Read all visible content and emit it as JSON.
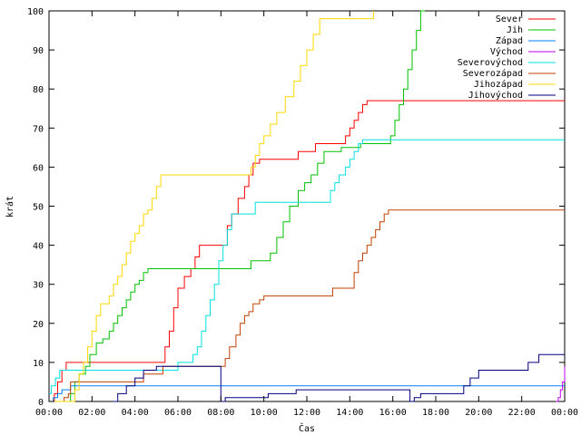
{
  "chart_data": {
    "type": "line",
    "step": true,
    "title": "",
    "xlabel": "Čas",
    "ylabel": "krát",
    "xlim": [
      0,
      24
    ],
    "ylim": [
      0,
      100
    ],
    "x_ticks": [
      0,
      2,
      4,
      6,
      8,
      10,
      12,
      14,
      16,
      18,
      20,
      22,
      24
    ],
    "x_tick_labels": [
      "00:00",
      "02:00",
      "04:00",
      "06:00",
      "08:00",
      "10:00",
      "12:00",
      "14:00",
      "16:00",
      "18:00",
      "20:00",
      "22:00",
      "00:00"
    ],
    "y_ticks": [
      0,
      10,
      20,
      30,
      40,
      50,
      60,
      70,
      80,
      90,
      100
    ],
    "y_tick_labels": [
      "0",
      "10",
      "20",
      "30",
      "40",
      "50",
      "60",
      "70",
      "80",
      "90",
      "100"
    ],
    "grid": false,
    "legend_position": "top-right",
    "series": [
      {
        "name": "Sever",
        "color": "#ff0000",
        "points": [
          [
            0,
            0
          ],
          [
            0.25,
            2
          ],
          [
            0.4,
            5
          ],
          [
            0.6,
            8
          ],
          [
            0.8,
            10
          ],
          [
            5.2,
            10
          ],
          [
            5.4,
            14
          ],
          [
            5.6,
            18
          ],
          [
            5.8,
            24
          ],
          [
            6.0,
            29
          ],
          [
            6.3,
            32
          ],
          [
            6.6,
            34
          ],
          [
            6.8,
            37
          ],
          [
            7.0,
            40
          ],
          [
            7.9,
            40
          ],
          [
            8.3,
            45
          ],
          [
            8.5,
            48
          ],
          [
            8.8,
            52
          ],
          [
            9.1,
            55
          ],
          [
            9.3,
            58
          ],
          [
            9.5,
            61
          ],
          [
            9.8,
            62
          ],
          [
            11.2,
            62
          ],
          [
            11.6,
            64
          ],
          [
            12.0,
            64
          ],
          [
            12.4,
            66
          ],
          [
            13.6,
            66
          ],
          [
            13.8,
            68
          ],
          [
            14.0,
            70
          ],
          [
            14.2,
            72
          ],
          [
            14.4,
            74
          ],
          [
            14.6,
            76
          ],
          [
            14.8,
            77
          ],
          [
            24,
            77
          ]
        ]
      },
      {
        "name": "Jih",
        "color": "#00c000",
        "points": [
          [
            0,
            0
          ],
          [
            1.0,
            2
          ],
          [
            1.2,
            5
          ],
          [
            1.4,
            7
          ],
          [
            1.7,
            9
          ],
          [
            1.9,
            12
          ],
          [
            2.2,
            15
          ],
          [
            2.5,
            16
          ],
          [
            2.8,
            18
          ],
          [
            3.0,
            20
          ],
          [
            3.2,
            22
          ],
          [
            3.4,
            24
          ],
          [
            3.6,
            26
          ],
          [
            3.8,
            28
          ],
          [
            4.0,
            30
          ],
          [
            4.2,
            31
          ],
          [
            4.4,
            33
          ],
          [
            4.6,
            34
          ],
          [
            7.5,
            34
          ],
          [
            8.0,
            34
          ],
          [
            8.4,
            34
          ],
          [
            9.2,
            34
          ],
          [
            9.4,
            36
          ],
          [
            10.0,
            36
          ],
          [
            10.3,
            38
          ],
          [
            10.6,
            42
          ],
          [
            10.9,
            46
          ],
          [
            11.2,
            50
          ],
          [
            11.6,
            54
          ],
          [
            11.9,
            56
          ],
          [
            12.2,
            58
          ],
          [
            12.5,
            61
          ],
          [
            12.8,
            64
          ],
          [
            13.2,
            64
          ],
          [
            13.6,
            65
          ],
          [
            14.0,
            65
          ],
          [
            14.5,
            66
          ],
          [
            15.7,
            66
          ],
          [
            15.9,
            68
          ],
          [
            16.1,
            72
          ],
          [
            16.3,
            76
          ],
          [
            16.5,
            80
          ],
          [
            16.7,
            85
          ],
          [
            16.9,
            90
          ],
          [
            17.1,
            95
          ],
          [
            17.3,
            100
          ],
          [
            17.5,
            100
          ]
        ]
      },
      {
        "name": "Západ",
        "color": "#0080ff",
        "points": [
          [
            0,
            0
          ],
          [
            0.2,
            1
          ],
          [
            0.4,
            2
          ],
          [
            0.6,
            3
          ],
          [
            1.0,
            4
          ],
          [
            24,
            4
          ]
        ]
      },
      {
        "name": "Východ",
        "color": "#c000ff",
        "points": [
          [
            23.6,
            0
          ],
          [
            23.7,
            1
          ],
          [
            23.8,
            3
          ],
          [
            23.9,
            5
          ],
          [
            24,
            9
          ]
        ]
      },
      {
        "name": "Severovýchod",
        "color": "#00e0e0",
        "points": [
          [
            0,
            2
          ],
          [
            0.1,
            4
          ],
          [
            0.3,
            6
          ],
          [
            0.5,
            8
          ],
          [
            5.8,
            8
          ],
          [
            6.0,
            10
          ],
          [
            6.5,
            10
          ],
          [
            6.7,
            12
          ],
          [
            6.9,
            14
          ],
          [
            7.1,
            18
          ],
          [
            7.3,
            22
          ],
          [
            7.5,
            26
          ],
          [
            7.7,
            30
          ],
          [
            7.9,
            36
          ],
          [
            8.1,
            40
          ],
          [
            8.3,
            44
          ],
          [
            8.5,
            48
          ],
          [
            9.4,
            48
          ],
          [
            9.6,
            51
          ],
          [
            12.9,
            51
          ],
          [
            13.1,
            54
          ],
          [
            13.3,
            56
          ],
          [
            13.5,
            58
          ],
          [
            13.8,
            60
          ],
          [
            14.0,
            62
          ],
          [
            14.2,
            64
          ],
          [
            14.4,
            66
          ],
          [
            14.6,
            67
          ],
          [
            24,
            67
          ]
        ]
      },
      {
        "name": "Severozápad",
        "color": "#c04000",
        "points": [
          [
            0,
            0
          ],
          [
            0.7,
            1
          ],
          [
            0.9,
            2
          ],
          [
            1.0,
            5
          ],
          [
            4.0,
            5
          ],
          [
            4.4,
            7
          ],
          [
            5.0,
            7
          ],
          [
            5.3,
            9
          ],
          [
            8.0,
            9
          ],
          [
            8.2,
            11
          ],
          [
            8.4,
            14
          ],
          [
            8.7,
            17
          ],
          [
            8.9,
            20
          ],
          [
            9.1,
            22
          ],
          [
            9.3,
            23
          ],
          [
            9.5,
            25
          ],
          [
            9.8,
            26
          ],
          [
            10.0,
            27
          ],
          [
            13.0,
            27
          ],
          [
            13.2,
            29
          ],
          [
            14.0,
            29
          ],
          [
            14.2,
            33
          ],
          [
            14.4,
            36
          ],
          [
            14.6,
            38
          ],
          [
            14.8,
            40
          ],
          [
            15.0,
            42
          ],
          [
            15.2,
            44
          ],
          [
            15.4,
            46
          ],
          [
            15.6,
            48
          ],
          [
            15.8,
            49
          ],
          [
            24,
            49
          ]
        ]
      },
      {
        "name": "Jihozápad",
        "color": "#ffd700",
        "points": [
          [
            0,
            0
          ],
          [
            1.2,
            3
          ],
          [
            1.4,
            7
          ],
          [
            1.6,
            10
          ],
          [
            1.8,
            14
          ],
          [
            2.0,
            18
          ],
          [
            2.2,
            22
          ],
          [
            2.4,
            25
          ],
          [
            2.6,
            25
          ],
          [
            2.8,
            27
          ],
          [
            3.0,
            30
          ],
          [
            3.2,
            32
          ],
          [
            3.4,
            35
          ],
          [
            3.6,
            38
          ],
          [
            3.8,
            41
          ],
          [
            4.0,
            43
          ],
          [
            4.2,
            45
          ],
          [
            4.4,
            48
          ],
          [
            4.6,
            49
          ],
          [
            4.8,
            52
          ],
          [
            5.0,
            55
          ],
          [
            5.2,
            58
          ],
          [
            9.0,
            58
          ],
          [
            9.2,
            58
          ],
          [
            9.4,
            60
          ],
          [
            9.6,
            63
          ],
          [
            9.8,
            66
          ],
          [
            10.0,
            68
          ],
          [
            10.3,
            71
          ],
          [
            10.6,
            74
          ],
          [
            11.0,
            78
          ],
          [
            11.4,
            82
          ],
          [
            11.7,
            86
          ],
          [
            12.0,
            90
          ],
          [
            12.3,
            94
          ],
          [
            12.6,
            98
          ],
          [
            14.0,
            98
          ],
          [
            14.2,
            98
          ],
          [
            15.0,
            98
          ],
          [
            15.1,
            100
          ]
        ]
      },
      {
        "name": "Jihovýchod",
        "color": "#000080",
        "points": [
          [
            3.0,
            0
          ],
          [
            3.2,
            2
          ],
          [
            3.6,
            4
          ],
          [
            4.0,
            6
          ],
          [
            4.4,
            8
          ],
          [
            5.0,
            9
          ],
          [
            8.0,
            9
          ],
          [
            8.0,
            0
          ],
          [
            8.2,
            1
          ],
          [
            10.0,
            1
          ],
          [
            10.2,
            2
          ],
          [
            11.0,
            2
          ],
          [
            11.5,
            3
          ],
          [
            16.5,
            3
          ],
          [
            16.8,
            0
          ],
          [
            17.0,
            1
          ],
          [
            17.3,
            2
          ],
          [
            19.0,
            2
          ],
          [
            19.3,
            4
          ],
          [
            19.6,
            6
          ],
          [
            20.0,
            8
          ],
          [
            22.0,
            8
          ],
          [
            22.3,
            10
          ],
          [
            22.8,
            12
          ],
          [
            24,
            12
          ]
        ]
      }
    ]
  }
}
